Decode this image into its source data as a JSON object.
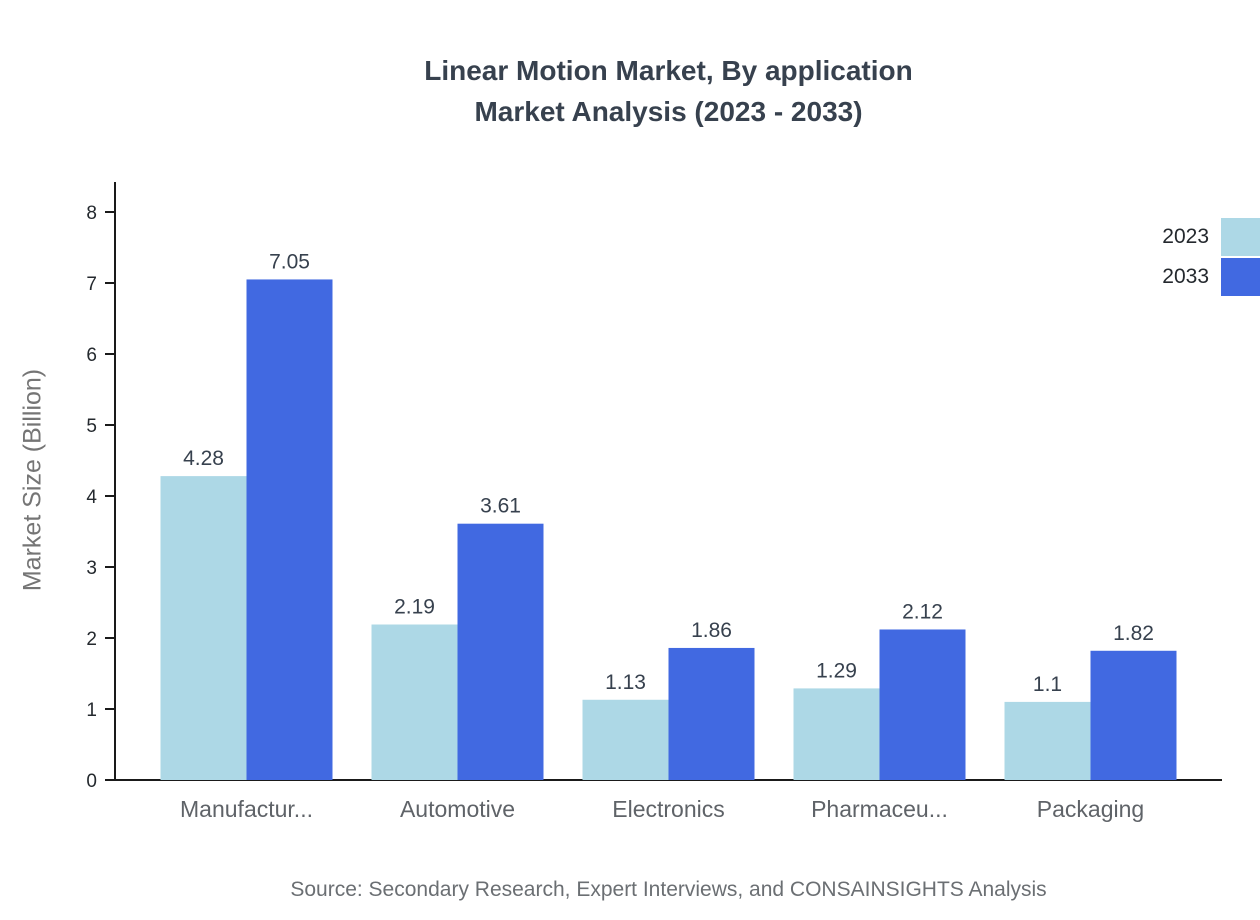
{
  "title": "Linear Motion Market, By application",
  "subtitle": "Market Analysis (2023 - 2033)",
  "source": "Source: Secondary Research, Expert Interviews, and CONSAINSIGHTS Analysis",
  "colors": {
    "series_2023": "#ADD8E6",
    "series_2033": "#4169E1",
    "axis": "#1A1A1A",
    "title_text": "#37414E",
    "category_text": "#5F6368",
    "value_text": "#37414E",
    "muted_text": "#757575"
  },
  "chart_data": {
    "type": "bar",
    "title": "Linear Motion Market, By application — Market Analysis (2023 - 2033)",
    "categories": [
      "Manufactur...",
      "Automotive",
      "Electronics",
      "Pharmaceu...",
      "Packaging"
    ],
    "series": [
      {
        "name": "2023",
        "color": "#ADD8E6",
        "values": [
          4.28,
          2.19,
          1.13,
          1.29,
          1.1
        ]
      },
      {
        "name": "2033",
        "color": "#4169E1",
        "values": [
          7.05,
          3.61,
          1.86,
          2.12,
          1.82
        ]
      }
    ],
    "xlabel": "",
    "ylabel": "Market Size (Billion)",
    "ylim": [
      0,
      8
    ],
    "yticks": [
      0,
      1,
      2,
      3,
      4,
      5,
      6,
      7,
      8
    ],
    "grid": false,
    "legend_position": "top-right",
    "value_labels": true
  }
}
